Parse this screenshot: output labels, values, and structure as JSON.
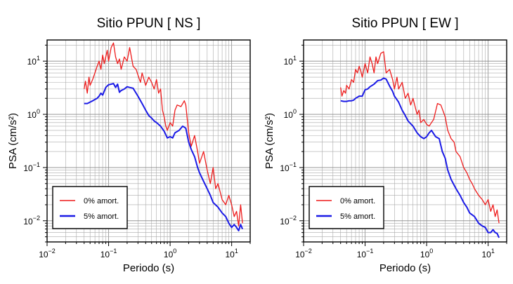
{
  "chart_data": [
    {
      "type": "line",
      "title": "Sitio PPUN [ NS ]",
      "xlabel": "Periodo (s)",
      "ylabel": "PSA (cm/s²)",
      "xscale": "log",
      "yscale": "log",
      "xlim": [
        0.01,
        20
      ],
      "ylim": [
        0.004,
        25
      ],
      "xticks": [
        {
          "mant": "10",
          "exp": "−2"
        },
        {
          "mant": "10",
          "exp": "−1"
        },
        {
          "mant": "10",
          "exp": "0"
        },
        {
          "mant": "10",
          "exp": "1"
        }
      ],
      "yticks": [
        {
          "mant": "10",
          "exp": "−2"
        },
        {
          "mant": "10",
          "exp": "−1"
        },
        {
          "mant": "10",
          "exp": "0"
        },
        {
          "mant": "10",
          "exp": "1"
        }
      ],
      "grid": true,
      "legend_position": "bottom-left",
      "series": [
        {
          "name": "0% amort.",
          "color": "#ee1c1c",
          "x": [
            0.04,
            0.042,
            0.045,
            0.048,
            0.05,
            0.055,
            0.06,
            0.065,
            0.07,
            0.075,
            0.08,
            0.085,
            0.09,
            0.095,
            0.1,
            0.11,
            0.12,
            0.13,
            0.14,
            0.15,
            0.16,
            0.18,
            0.2,
            0.22,
            0.25,
            0.28,
            0.3,
            0.33,
            0.35,
            0.4,
            0.45,
            0.5,
            0.55,
            0.6,
            0.65,
            0.7,
            0.75,
            0.8,
            0.85,
            0.9,
            1.0,
            1.1,
            1.2,
            1.3,
            1.5,
            1.7,
            1.8,
            2.0,
            2.2,
            2.5,
            2.8,
            3.0,
            3.5,
            4.0,
            4.5,
            5.0,
            5.5,
            6.0,
            7.0,
            8.0,
            9.0,
            10.0,
            11.0,
            12.0,
            13.0,
            14.0,
            15.0
          ],
          "y": [
            3.0,
            4.2,
            2.5,
            5.0,
            3.5,
            4.5,
            6.0,
            8.0,
            10.0,
            7.0,
            13.0,
            9.0,
            12.0,
            16.0,
            10.0,
            18.0,
            22.0,
            12.0,
            9.0,
            11.0,
            7.0,
            12.0,
            10.0,
            18.0,
            8.0,
            7.0,
            5.5,
            4.0,
            6.0,
            3.5,
            5.0,
            4.0,
            3.0,
            4.5,
            2.5,
            3.0,
            1.2,
            0.9,
            0.6,
            0.5,
            0.7,
            0.6,
            1.2,
            1.5,
            1.4,
            1.8,
            1.5,
            0.45,
            0.25,
            0.4,
            0.2,
            0.12,
            0.2,
            0.09,
            0.05,
            0.1,
            0.04,
            0.05,
            0.025,
            0.02,
            0.03,
            0.02,
            0.012,
            0.015,
            0.008,
            0.02,
            0.009
          ]
        },
        {
          "name": "5% amort.",
          "color": "#1a1ae6",
          "x": [
            0.04,
            0.045,
            0.05,
            0.055,
            0.06,
            0.065,
            0.07,
            0.075,
            0.08,
            0.09,
            0.1,
            0.11,
            0.12,
            0.13,
            0.14,
            0.15,
            0.16,
            0.18,
            0.2,
            0.22,
            0.25,
            0.28,
            0.3,
            0.35,
            0.4,
            0.45,
            0.5,
            0.55,
            0.6,
            0.7,
            0.8,
            0.9,
            1.0,
            1.1,
            1.2,
            1.4,
            1.6,
            1.8,
            2.0,
            2.2,
            2.5,
            2.8,
            3.0,
            3.5,
            4.0,
            4.5,
            5.0,
            6.0,
            7.0,
            8.0,
            9.0,
            10.0,
            11.0,
            12.0,
            13.0,
            14.0,
            15.0
          ],
          "y": [
            1.6,
            1.6,
            1.7,
            1.8,
            1.9,
            2.0,
            2.2,
            2.5,
            2.3,
            3.2,
            3.6,
            3.7,
            3.8,
            3.2,
            3.7,
            2.6,
            2.8,
            3.0,
            3.3,
            3.2,
            3.1,
            2.5,
            2.2,
            1.6,
            1.2,
            0.95,
            0.85,
            0.75,
            0.7,
            0.6,
            0.48,
            0.36,
            0.38,
            0.36,
            0.45,
            0.5,
            0.6,
            0.55,
            0.3,
            0.22,
            0.16,
            0.1,
            0.08,
            0.055,
            0.04,
            0.03,
            0.022,
            0.018,
            0.014,
            0.012,
            0.009,
            0.0075,
            0.0085,
            0.0075,
            0.0065,
            0.0085,
            0.007
          ]
        }
      ]
    },
    {
      "type": "line",
      "title": "Sitio PPUN [ EW ]",
      "xlabel": "Periodo (s)",
      "ylabel": "PSA (cm/s²)",
      "xscale": "log",
      "yscale": "log",
      "xlim": [
        0.01,
        20
      ],
      "ylim": [
        0.004,
        25
      ],
      "xticks": [
        {
          "mant": "10",
          "exp": "−2"
        },
        {
          "mant": "10",
          "exp": "−1"
        },
        {
          "mant": "10",
          "exp": "0"
        },
        {
          "mant": "10",
          "exp": "1"
        }
      ],
      "yticks": [
        {
          "mant": "10",
          "exp": "−2"
        },
        {
          "mant": "10",
          "exp": "−1"
        },
        {
          "mant": "10",
          "exp": "0"
        },
        {
          "mant": "10",
          "exp": "1"
        }
      ],
      "grid": true,
      "legend_position": "bottom-left",
      "series": [
        {
          "name": "0% amort.",
          "color": "#ee1c1c",
          "x": [
            0.04,
            0.042,
            0.045,
            0.048,
            0.05,
            0.055,
            0.06,
            0.065,
            0.07,
            0.075,
            0.08,
            0.085,
            0.09,
            0.1,
            0.11,
            0.12,
            0.13,
            0.14,
            0.15,
            0.16,
            0.18,
            0.2,
            0.22,
            0.25,
            0.28,
            0.3,
            0.33,
            0.35,
            0.4,
            0.45,
            0.5,
            0.55,
            0.6,
            0.7,
            0.75,
            0.8,
            0.9,
            1.0,
            1.1,
            1.2,
            1.3,
            1.5,
            1.7,
            2.0,
            2.2,
            2.5,
            2.8,
            3.0,
            3.5,
            4.0,
            4.5,
            5.0,
            5.5,
            6.0,
            7.0,
            8.0,
            9.0,
            10.0,
            11.0,
            12.0,
            13.0,
            14.0,
            15.0
          ],
          "y": [
            3.2,
            2.2,
            2.8,
            2.5,
            3.5,
            3.0,
            4.5,
            4.0,
            7.0,
            6.0,
            8.0,
            6.5,
            5.0,
            9.0,
            6.0,
            12.0,
            9.0,
            6.0,
            12.0,
            9.0,
            14.0,
            15.0,
            6.0,
            7.0,
            4.5,
            3.0,
            5.0,
            3.0,
            4.0,
            2.0,
            2.5,
            1.5,
            2.0,
            1.0,
            1.2,
            0.7,
            0.8,
            0.65,
            0.6,
            0.7,
            0.8,
            1.6,
            1.5,
            0.9,
            0.5,
            0.35,
            0.3,
            0.2,
            0.16,
            0.1,
            0.08,
            0.06,
            0.05,
            0.04,
            0.03,
            0.025,
            0.02,
            0.025,
            0.015,
            0.02,
            0.012,
            0.016,
            0.009
          ]
        },
        {
          "name": "5% amort.",
          "color": "#1a1ae6",
          "x": [
            0.04,
            0.045,
            0.05,
            0.055,
            0.06,
            0.065,
            0.07,
            0.08,
            0.09,
            0.1,
            0.11,
            0.12,
            0.13,
            0.14,
            0.15,
            0.16,
            0.18,
            0.2,
            0.22,
            0.25,
            0.28,
            0.3,
            0.35,
            0.4,
            0.45,
            0.5,
            0.6,
            0.7,
            0.8,
            0.9,
            1.0,
            1.1,
            1.2,
            1.4,
            1.6,
            1.8,
            2.0,
            2.2,
            2.5,
            3.0,
            3.5,
            4.0,
            4.5,
            5.0,
            6.0,
            7.0,
            8.0,
            9.0,
            10.0,
            11.0,
            12.0,
            13.0,
            14.0,
            15.0
          ],
          "y": [
            1.8,
            1.75,
            1.75,
            1.8,
            1.8,
            1.85,
            2.0,
            2.2,
            2.2,
            2.9,
            3.0,
            3.3,
            3.5,
            3.7,
            4.0,
            4.3,
            4.4,
            4.8,
            4.6,
            3.4,
            2.7,
            2.2,
            1.7,
            1.2,
            0.95,
            0.75,
            0.6,
            0.45,
            0.38,
            0.35,
            0.38,
            0.45,
            0.5,
            0.38,
            0.35,
            0.2,
            0.15,
            0.09,
            0.06,
            0.04,
            0.03,
            0.022,
            0.018,
            0.014,
            0.012,
            0.009,
            0.008,
            0.0075,
            0.006,
            0.006,
            0.0068,
            0.006,
            0.0058,
            0.0048
          ]
        }
      ]
    }
  ]
}
